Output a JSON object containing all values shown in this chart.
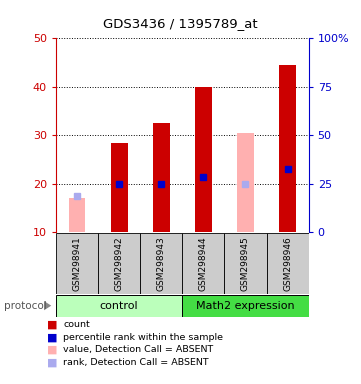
{
  "title": "GDS3436 / 1395789_at",
  "samples": [
    "GSM298941",
    "GSM298942",
    "GSM298943",
    "GSM298944",
    "GSM298945",
    "GSM298946"
  ],
  "red_bars": [
    null,
    28.5,
    32.5,
    40.0,
    null,
    44.5
  ],
  "pink_bars": [
    17.0,
    null,
    null,
    null,
    30.5,
    null
  ],
  "blue_markers": [
    null,
    20.0,
    20.0,
    21.5,
    null,
    23.0
  ],
  "lavender_markers": [
    17.5,
    null,
    null,
    null,
    20.0,
    null
  ],
  "ylim_left": [
    10,
    50
  ],
  "ylim_right": [
    0,
    100
  ],
  "yticks_left": [
    10,
    20,
    30,
    40,
    50
  ],
  "yticks_right": [
    0,
    25,
    50,
    75,
    100
  ],
  "ytick_labels_right": [
    "0",
    "25",
    "50",
    "75",
    "100%"
  ],
  "left_axis_color": "#cc0000",
  "right_axis_color": "#0000cc",
  "red_bar_color": "#cc0000",
  "pink_bar_color": "#ffb0b0",
  "blue_marker_color": "#0000cc",
  "lavender_marker_color": "#aaaaee",
  "control_color": "#bbffbb",
  "math2_color": "#44dd44",
  "xlabel_bg": "#cccccc",
  "protocol_text": "protocol",
  "legend_labels": [
    "count",
    "percentile rank within the sample",
    "value, Detection Call = ABSENT",
    "rank, Detection Call = ABSENT"
  ],
  "legend_colors": [
    "#cc0000",
    "#0000cc",
    "#ffb0b0",
    "#aaaaee"
  ]
}
